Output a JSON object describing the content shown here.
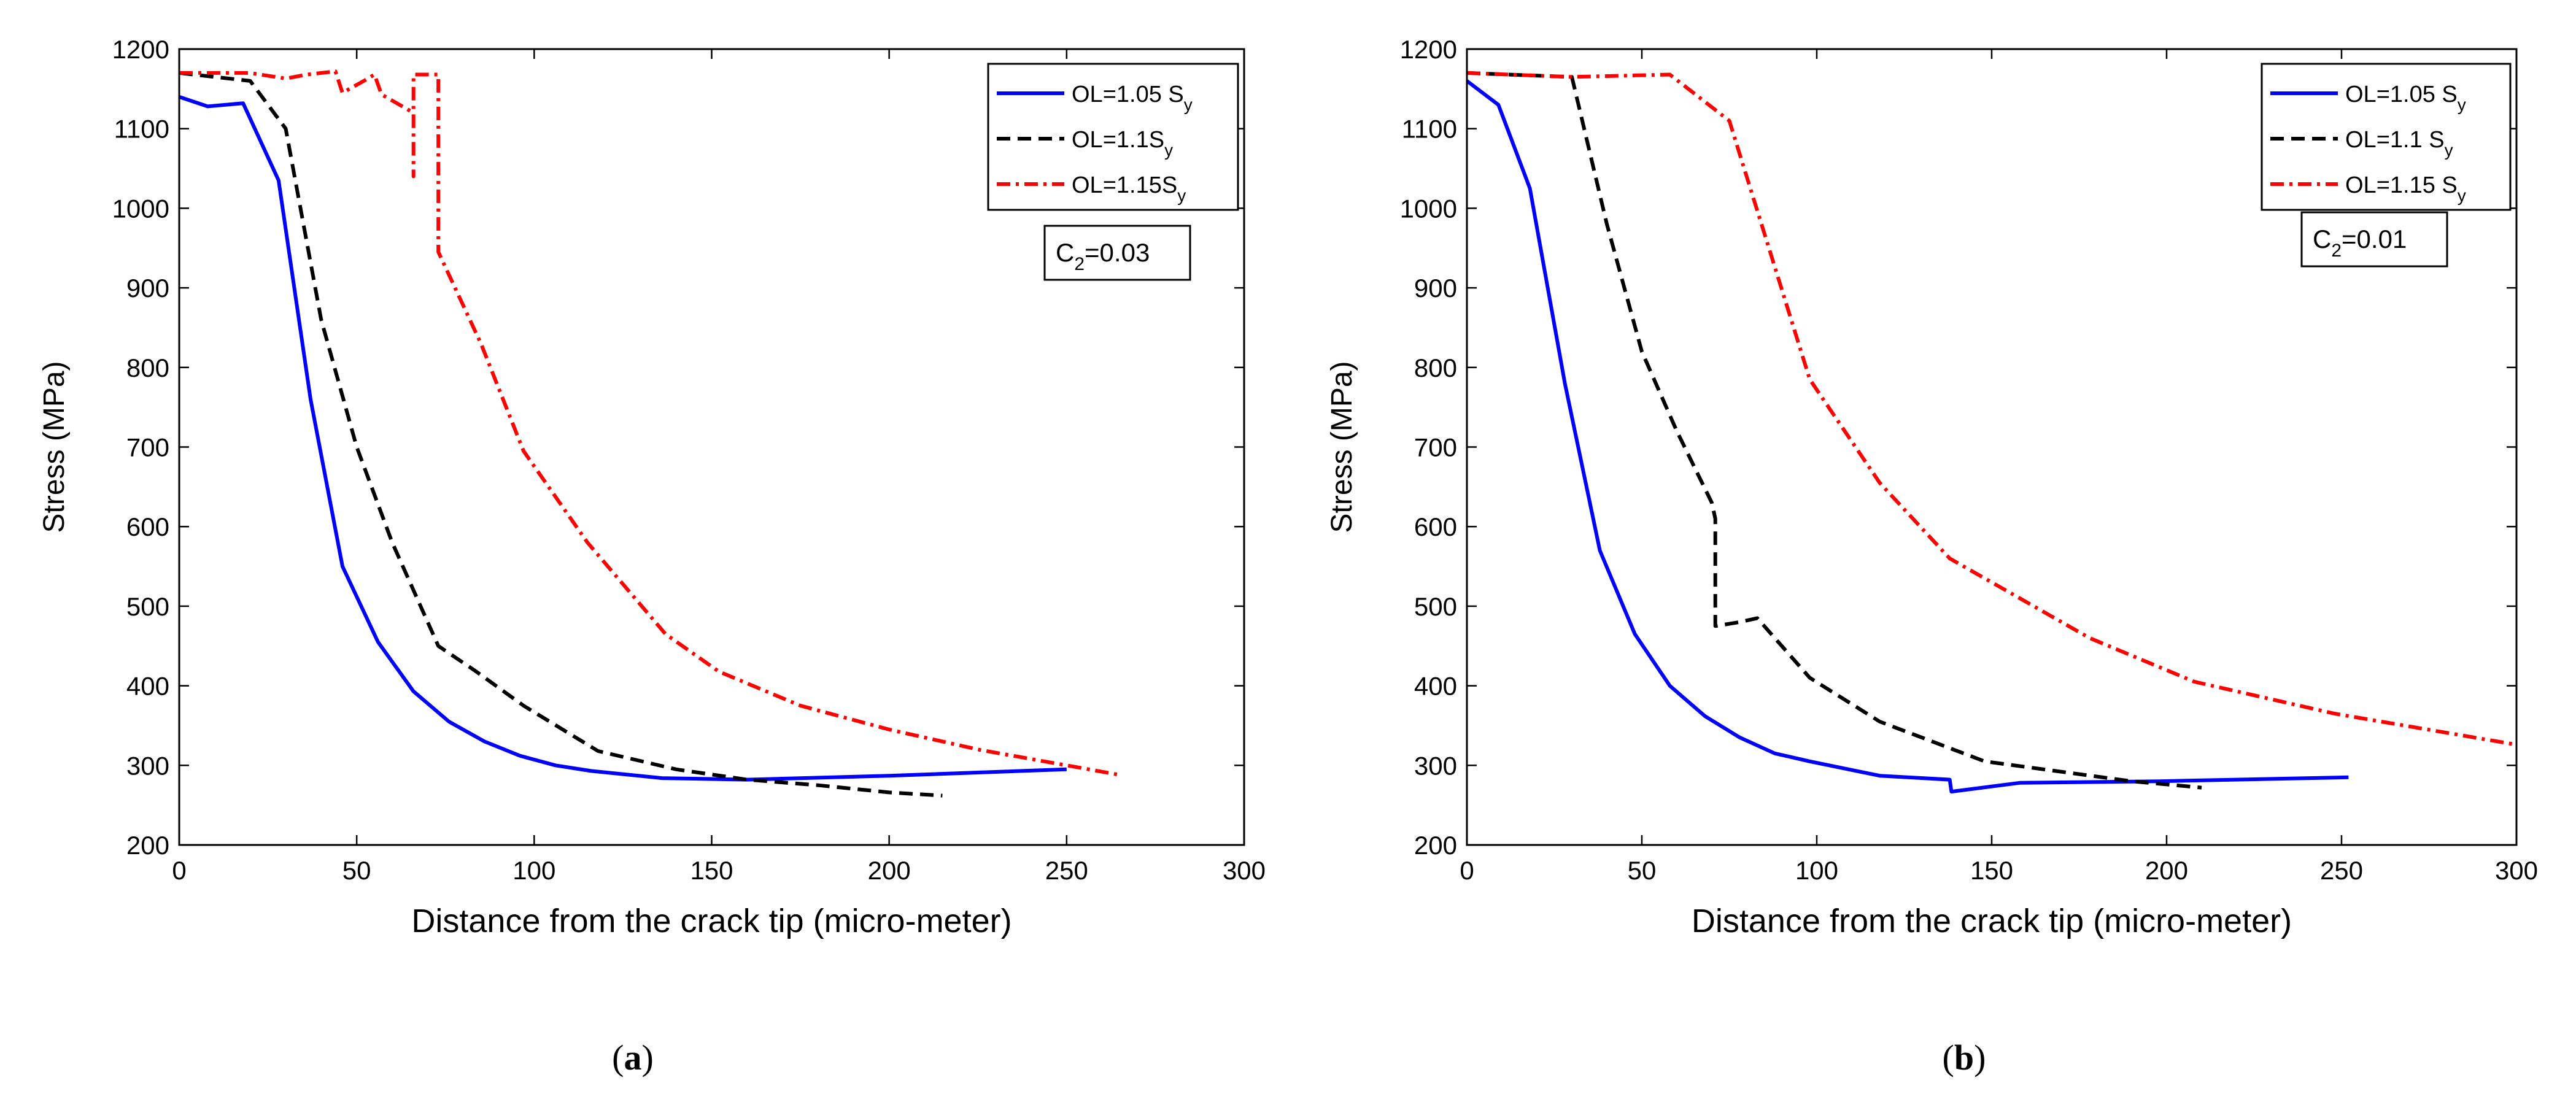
{
  "chart_data": [
    {
      "type": "line",
      "panel": "a",
      "panel_label": "a",
      "xlabel": "Distance from the crack tip (micro-meter)",
      "ylabel": "Stress (MPa)",
      "xlim": [
        0,
        300
      ],
      "ylim": [
        200,
        1200
      ],
      "xticks": [
        0,
        50,
        100,
        150,
        200,
        250,
        300
      ],
      "yticks": [
        200,
        300,
        400,
        500,
        600,
        700,
        800,
        900,
        1000,
        1100,
        1200
      ],
      "annotation": {
        "base": "C",
        "sub": "2",
        "rest": "=0.03"
      },
      "legend_position": "top-right",
      "series": [
        {
          "name": "OL=1.05 Sy",
          "label_base": "OL=1.05 S",
          "label_sub": "y",
          "color": "#0000ff",
          "style": "solid",
          "x": [
            0,
            8,
            18,
            28,
            37,
            46,
            56,
            66,
            76,
            86,
            96,
            106,
            116,
            136,
            160,
            200,
            250
          ],
          "y": [
            1140,
            1128,
            1132,
            1035,
            760,
            550,
            455,
            393,
            355,
            330,
            312,
            300,
            293,
            284,
            282,
            287,
            295
          ]
        },
        {
          "name": "OL=1.1Sy",
          "label_base": "OL=1.1S",
          "label_sub": "y",
          "color": "#000000",
          "style": "dashed",
          "x": [
            0,
            20,
            30,
            40,
            50,
            60,
            73,
            83,
            97,
            118,
            140,
            160,
            180,
            200,
            215
          ],
          "y": [
            1170,
            1160,
            1100,
            860,
            700,
            580,
            450,
            420,
            375,
            318,
            295,
            282,
            275,
            266,
            262
          ]
        },
        {
          "name": "OL=1.15Sy",
          "label_base": "OL=1.15S",
          "label_sub": "y",
          "color": "#ff0000",
          "style": "dashdot",
          "x": [
            0,
            20,
            30,
            36,
            44,
            46,
            52,
            55,
            57,
            66,
            66,
            66,
            66,
            73,
            73,
            73,
            85,
            97,
            115,
            137,
            152,
            175,
            200,
            225,
            250,
            265
          ],
          "y": [
            1170,
            1170,
            1163,
            1168,
            1172,
            1145,
            1160,
            1168,
            1143,
            1120,
            1040,
            1120,
            1168,
            1168,
            1060,
            945,
            830,
            695,
            580,
            465,
            418,
            375,
            345,
            320,
            300,
            288
          ]
        }
      ]
    },
    {
      "type": "line",
      "panel": "b",
      "panel_label": "b",
      "xlabel": "Distance from the crack tip (micro-meter)",
      "ylabel": "Stress (MPa)",
      "xlim": [
        0,
        300
      ],
      "ylim": [
        200,
        1200
      ],
      "xticks": [
        0,
        50,
        100,
        150,
        200,
        250,
        300
      ],
      "yticks": [
        200,
        300,
        400,
        500,
        600,
        700,
        800,
        900,
        1000,
        1100,
        1200
      ],
      "annotation": {
        "base": "C",
        "sub": "2",
        "rest": "=0.01"
      },
      "legend_position": "top-right",
      "series": [
        {
          "name": "OL=1.05 Sy",
          "label_base": "OL=1.05 S",
          "label_sub": "y",
          "color": "#0000ff",
          "style": "solid",
          "x": [
            0,
            9,
            18,
            28,
            38,
            48,
            58,
            68,
            78,
            88,
            98,
            118,
            138,
            138.5,
            158,
            198,
            252
          ],
          "y": [
            1160,
            1130,
            1025,
            780,
            570,
            465,
            400,
            362,
            335,
            315,
            305,
            287,
            282,
            267,
            278,
            280,
            285
          ]
        },
        {
          "name": "OL=1.1 Sy",
          "label_base": "OL=1.1 S",
          "label_sub": "y",
          "color": "#000000",
          "style": "dashed",
          "x": [
            0,
            30,
            40,
            50,
            60,
            70,
            71,
            71,
            78,
            83,
            98,
            118,
            148,
            190,
            210
          ],
          "y": [
            1170,
            1165,
            980,
            820,
            720,
            630,
            610,
            475,
            480,
            485,
            410,
            355,
            305,
            280,
            272
          ]
        },
        {
          "name": "OL=1.15 Sy",
          "label_base": "OL=1.15 S",
          "label_sub": "y",
          "color": "#ff0000",
          "style": "dashdot",
          "x": [
            0,
            30,
            58,
            75,
            98,
            118,
            138,
            158,
            178,
            208,
            248,
            300
          ],
          "y": [
            1170,
            1165,
            1168,
            1110,
            785,
            655,
            560,
            510,
            460,
            405,
            365,
            326
          ]
        }
      ]
    }
  ]
}
